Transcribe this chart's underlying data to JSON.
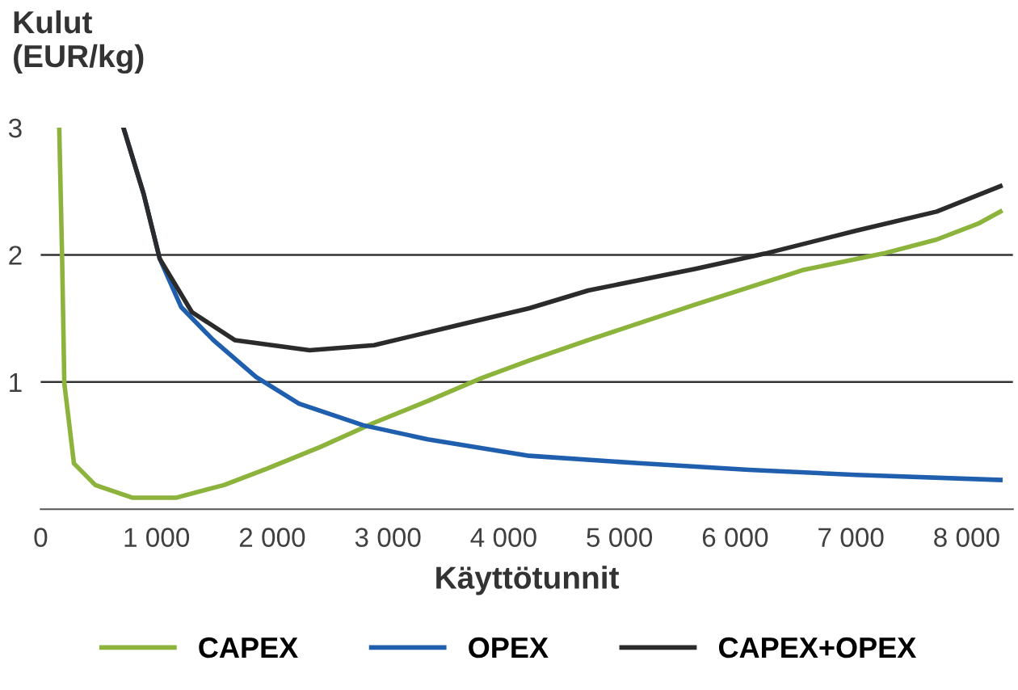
{
  "chart_data": {
    "type": "line",
    "ylabel": "Kulut\n(EUR/kg)",
    "xlabel": "Käyttötunnit",
    "xlim": [
      0,
      8400
    ],
    "ylim": [
      0,
      3
    ],
    "xticks": [
      0,
      {
        "value": 1000,
        "label": "1 000"
      },
      {
        "value": 2000,
        "label": "2 000"
      },
      {
        "value": 3000,
        "label": "3 000"
      },
      {
        "value": 4000,
        "label": "4 000"
      },
      {
        "value": 5000,
        "label": "5 000"
      },
      {
        "value": 6000,
        "label": "6 000"
      },
      {
        "value": 7000,
        "label": "7 000"
      },
      {
        "value": 8000,
        "label": "8 000"
      }
    ],
    "yticks": [
      1,
      2,
      3
    ],
    "grid": "y",
    "legend": "bottom",
    "marker": "none",
    "line_style": "solid",
    "series": [
      {
        "name": "CAPEX",
        "color": "#8cb33b",
        "x": [
          160,
          185,
          204,
          287,
          472,
          795,
          1167,
          1583,
          1958,
          2417,
          2880,
          3343,
          3806,
          4222,
          4731,
          5657,
          6583,
          7278,
          7741,
          8111,
          8292
        ],
        "values": [
          3.0,
          1.97,
          0.99,
          0.36,
          0.19,
          0.09,
          0.09,
          0.19,
          0.32,
          0.49,
          0.68,
          0.85,
          1.03,
          1.17,
          1.33,
          1.61,
          1.88,
          2.01,
          2.12,
          2.25,
          2.34
        ]
      },
      {
        "name": "OPEX",
        "color": "#1f5fae",
        "x": [
          718,
          889,
          1028,
          1213,
          1491,
          1861,
          2232,
          2787,
          3343,
          4222,
          5194,
          6120,
          7046,
          8292
        ],
        "values": [
          2.99,
          2.48,
          1.97,
          1.59,
          1.33,
          1.04,
          0.83,
          0.66,
          0.55,
          0.42,
          0.36,
          0.31,
          0.27,
          0.23
        ]
      },
      {
        "name": "CAPEX+OPEX",
        "color": "#2b2b2b",
        "x": [
          718,
          889,
          1028,
          1306,
          1676,
          2324,
          2880,
          3574,
          4222,
          4731,
          5657,
          6259,
          7046,
          7741,
          8292
        ],
        "values": [
          2.99,
          2.48,
          1.97,
          1.55,
          1.33,
          1.25,
          1.29,
          1.44,
          1.58,
          1.72,
          1.89,
          2.01,
          2.19,
          2.34,
          2.54
        ]
      }
    ]
  }
}
